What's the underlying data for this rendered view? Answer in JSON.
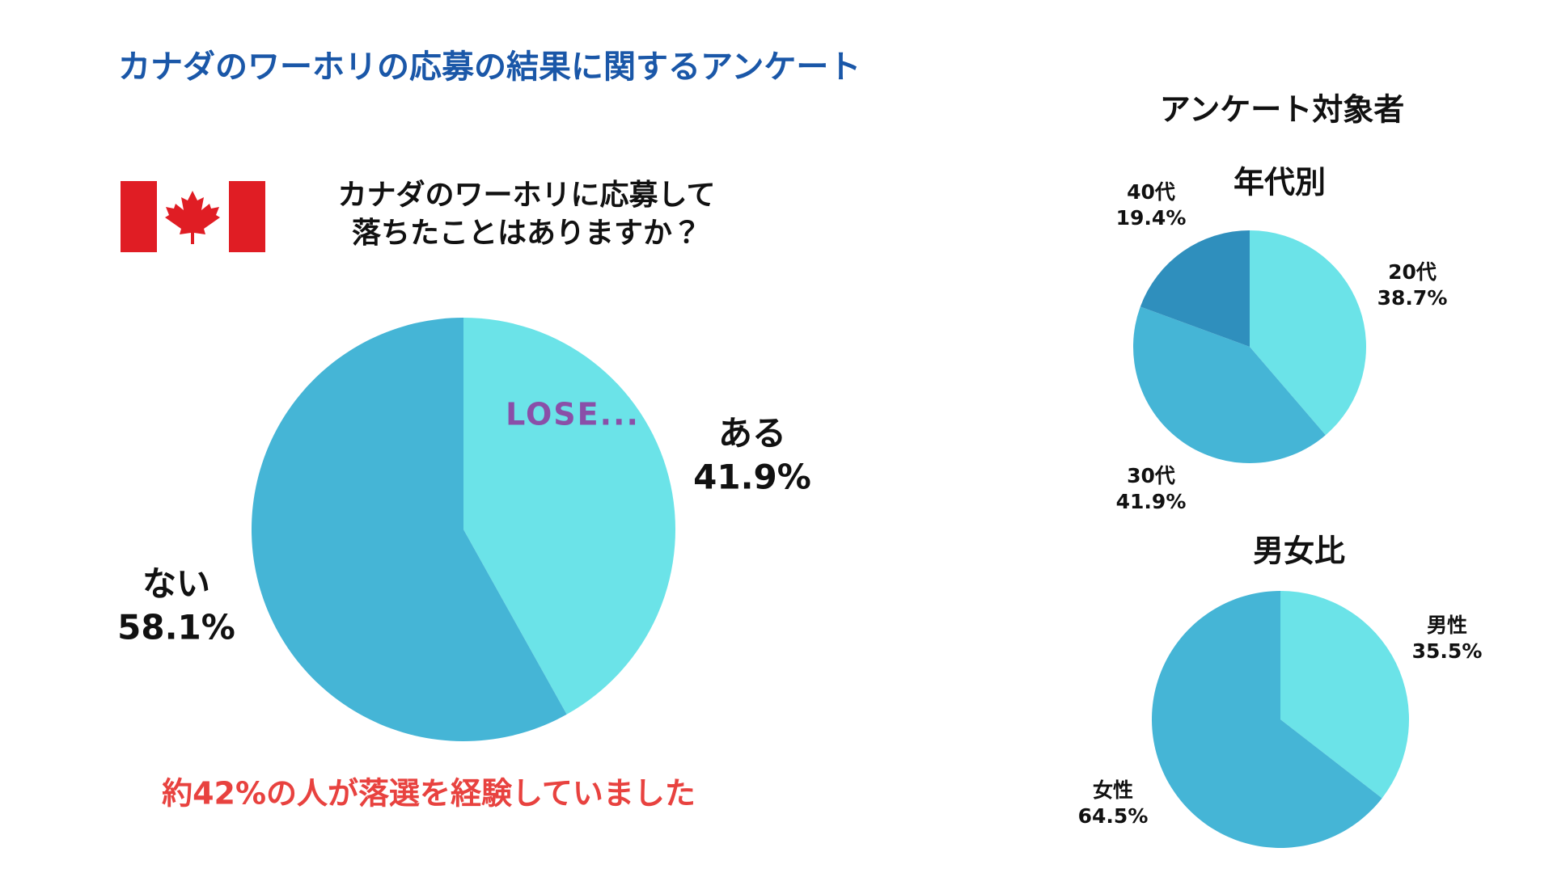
{
  "title": "カナダのワーホリの応募の結果に関するアンケート",
  "note": "約42%の人が落選を経験していました",
  "sidebar_title": "アンケート対象者",
  "badge": "LOSE...",
  "chart_data": [
    {
      "type": "pie",
      "title": "カナダのワーホリに応募して\n落ちたことはありますか？",
      "categories": [
        "ある",
        "ない"
      ],
      "values": [
        41.9,
        58.1
      ],
      "value_labels": [
        "41.9%",
        "58.1%"
      ],
      "colors": [
        "#6be3e8",
        "#45b5d6"
      ]
    },
    {
      "type": "pie",
      "title": "年代別",
      "categories": [
        "20代",
        "30代",
        "40代"
      ],
      "values": [
        38.7,
        41.9,
        19.4
      ],
      "value_labels": [
        "38.7%",
        "41.9%",
        "19.4%"
      ],
      "colors": [
        "#6be3e8",
        "#45b5d6",
        "#2f8fbd"
      ]
    },
    {
      "type": "pie",
      "title": "男女比",
      "categories": [
        "男性",
        "女性"
      ],
      "values": [
        35.5,
        64.5
      ],
      "value_labels": [
        "35.5%",
        "64.5%"
      ],
      "colors": [
        "#6be3e8",
        "#45b5d6"
      ]
    }
  ]
}
